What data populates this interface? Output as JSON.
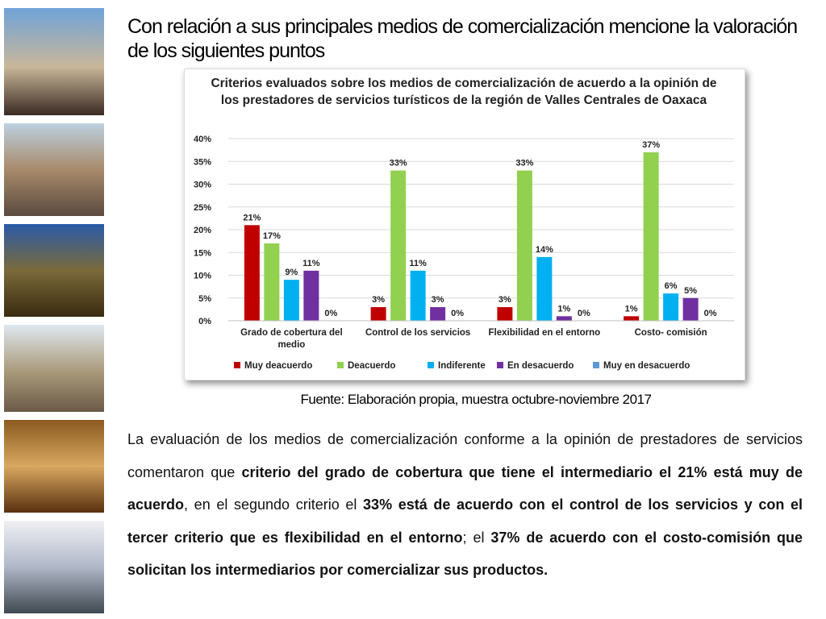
{
  "title": "Con relación a sus principales medios de comercialización mencione la valoración de los siguientes puntos",
  "chart_data": {
    "type": "bar",
    "title": "Criterios evaluados sobre los medios de comercialización de acuerdo a la opinión de los prestadores de servicios turísticos de la región de Valles Centrales de Oaxaca",
    "categories": [
      "Grado de cobertura del medio",
      "Control de los servicios",
      "Flexibilidad en el entorno",
      "Costo- comisión"
    ],
    "series": [
      {
        "name": "Muy deacuerdo",
        "color": "#c00000",
        "values": [
          21,
          3,
          3,
          1
        ],
        "value_labels": [
          "21%",
          "3%",
          "3%",
          "1%"
        ]
      },
      {
        "name": "Deacuerdo",
        "color": "#92d050",
        "values": [
          17,
          33,
          33,
          37
        ],
        "value_labels": [
          "17%",
          "33%",
          "33%",
          "37%"
        ]
      },
      {
        "name": "Indiferente",
        "color": "#00b0f0",
        "values": [
          9,
          11,
          14,
          6
        ],
        "value_labels": [
          "9%",
          "11%",
          "14%",
          "6%"
        ]
      },
      {
        "name": "En desacuerdo",
        "color": "#7030a0",
        "values": [
          11,
          3,
          1,
          5
        ],
        "value_labels": [
          "11%",
          "3%",
          "1%",
          "5%"
        ]
      },
      {
        "name": "Muy en desacuerdo",
        "color": "#5b9bd5",
        "values": [
          0,
          0,
          0,
          0
        ],
        "value_labels": [
          "0%",
          "0%",
          "0%",
          "0%"
        ]
      }
    ],
    "ylim": [
      0,
      40
    ],
    "yticks": [
      {
        "value": 0,
        "label": "0%"
      },
      {
        "value": 5,
        "label": "5%"
      },
      {
        "value": 10,
        "label": "10%"
      },
      {
        "value": 15,
        "label": "15%"
      },
      {
        "value": 20,
        "label": "20%"
      },
      {
        "value": 25,
        "label": "25%"
      },
      {
        "value": 30,
        "label": "30%"
      },
      {
        "value": 35,
        "label": "35%"
      },
      {
        "value": 40,
        "label": "40%"
      }
    ],
    "grid": true,
    "legend": "bottom"
  },
  "source": "Fuente: Elaboración propia, muestra octubre-noviembre 2017",
  "body": [
    {
      "text": "La evaluación de los medios de comercialización conforme a la opinión de prestadores de servicios comentaron que ",
      "bold": false
    },
    {
      "text": "criterio del grado de cobertura que tiene el intermediario el 21% está muy de acuerdo",
      "bold": true
    },
    {
      "text": ", en el segundo criterio el ",
      "bold": false
    },
    {
      "text": "33% está de acuerdo con el control de los servicios y con el tercer criterio que es flexibilidad en el entorno",
      "bold": true
    },
    {
      "text": "; el ",
      "bold": false
    },
    {
      "text": "37% de acuerdo con el costo-comisión que solicitan los intermediarios por comercializar sus productos.",
      "bold": true
    }
  ]
}
